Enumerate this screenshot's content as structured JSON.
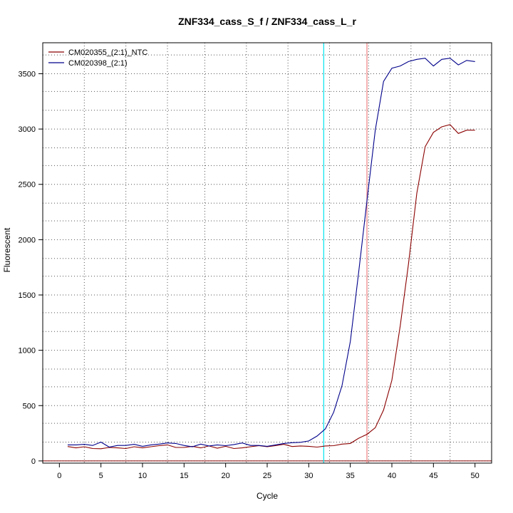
{
  "chart_data": {
    "type": "line",
    "title": "ZNF334_cass_S_f / ZNF334_cass_L_r",
    "xlabel": "Cycle",
    "ylabel": "Fluorescent",
    "xlim": [
      -2,
      52
    ],
    "ylim": [
      -20,
      3780
    ],
    "xticks": [
      0,
      5,
      10,
      15,
      20,
      25,
      30,
      35,
      40,
      45,
      50
    ],
    "yticks": [
      0,
      500,
      1000,
      1500,
      2000,
      2500,
      3000,
      3500
    ],
    "vgrid": [
      3,
      8,
      13,
      17.5,
      22.5,
      27.5,
      32.5,
      37.2,
      42.3,
      47
    ],
    "hgrid": [
      0,
      170,
      340,
      500,
      670,
      830,
      1000,
      1170,
      1340,
      1500,
      1670,
      1830,
      2000,
      2170,
      2330,
      2500,
      2670,
      2830,
      3000,
      3170,
      3340,
      3500,
      3670
    ],
    "grid": true,
    "legend_position": "top-left",
    "baseline": {
      "y": 0,
      "color": "#8b0000"
    },
    "vlines": [
      {
        "x": 31.8,
        "color": "#00e5ee"
      },
      {
        "x": 37,
        "color": "#f08080"
      }
    ],
    "x": [
      1,
      2,
      3,
      4,
      5,
      6,
      7,
      8,
      9,
      10,
      11,
      12,
      13,
      14,
      15,
      16,
      17,
      18,
      19,
      20,
      21,
      22,
      23,
      24,
      25,
      26,
      27,
      28,
      29,
      30,
      31,
      32,
      33,
      34,
      35,
      36,
      37,
      38,
      39,
      40,
      41,
      42,
      43,
      44,
      45,
      46,
      47,
      48,
      49,
      50
    ],
    "series": [
      {
        "name": "CM020355_(2:1)_NTC",
        "color": "#8b0000",
        "values": [
          130,
          118,
          128,
          112,
          110,
          122,
          118,
          112,
          128,
          118,
          128,
          138,
          145,
          122,
          122,
          132,
          118,
          135,
          115,
          132,
          112,
          118,
          128,
          138,
          128,
          138,
          150,
          130,
          135,
          132,
          125,
          135,
          138,
          152,
          158,
          205,
          240,
          300,
          460,
          730,
          1220,
          1780,
          2420,
          2840,
          2970,
          3020,
          3040,
          2960,
          2990,
          2990
        ]
      },
      {
        "name": "CM020398_(2:1)",
        "color": "#00008b",
        "values": [
          145,
          145,
          150,
          140,
          170,
          125,
          140,
          140,
          150,
          132,
          145,
          152,
          162,
          158,
          140,
          128,
          152,
          135,
          145,
          138,
          148,
          162,
          140,
          140,
          132,
          145,
          158,
          165,
          168,
          180,
          225,
          290,
          440,
          680,
          1080,
          1700,
          2350,
          2990,
          3430,
          3550,
          3570,
          3610,
          3630,
          3640,
          3570,
          3630,
          3640,
          3580,
          3620,
          3610
        ]
      }
    ]
  }
}
